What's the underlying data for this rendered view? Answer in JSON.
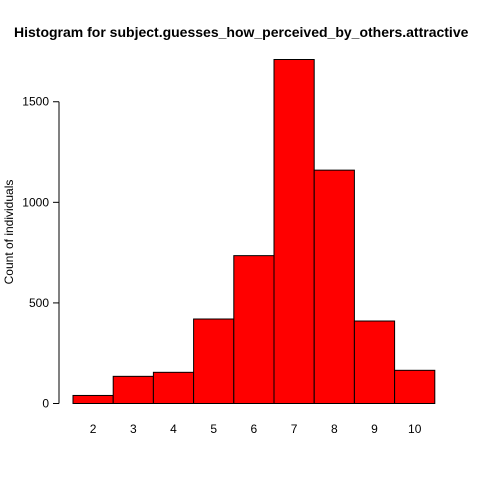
{
  "chart_data": {
    "type": "bar",
    "title": "Histogram for subject.guesses_how_perceived_by_others.attractive",
    "xlabel": "",
    "ylabel": "Count of individuals",
    "categories": [
      "2",
      "3",
      "4",
      "5",
      "6",
      "7",
      "8",
      "9",
      "10"
    ],
    "values": [
      40,
      135,
      155,
      420,
      735,
      1710,
      1160,
      410,
      165
    ],
    "ylim": [
      0,
      1710
    ],
    "yticks": [
      0,
      500,
      1000,
      1500
    ],
    "grid": false,
    "colors": {
      "bar_fill": "#ff0000",
      "bar_stroke": "#000000",
      "axis": "#000000"
    }
  }
}
